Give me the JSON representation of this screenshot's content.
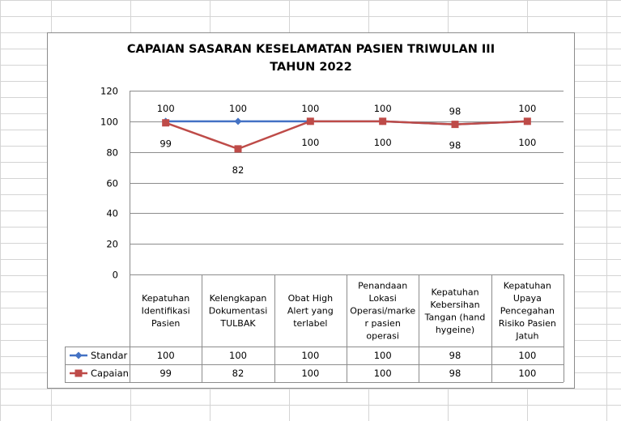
{
  "chart_data": {
    "type": "line",
    "title_lines": [
      "CAPAIAN SASARAN KESELAMATAN PASIEN TRIWULAN III",
      "TAHUN 2022"
    ],
    "categories": [
      [
        "Kepatuhan",
        "Identifikasi",
        "Pasien"
      ],
      [
        "Kelengkapan",
        "Dokumentasi",
        "TULBAK"
      ],
      [
        "Obat High",
        "Alert yang",
        "terlabel"
      ],
      [
        "Penandaan",
        "Lokasi",
        "Operasi/marke",
        "r pasien",
        "operasi"
      ],
      [
        "Kepatuhan",
        "Kebersihan",
        "Tangan (hand",
        "hygeine)"
      ],
      [
        "Kepatuhan",
        "Upaya",
        "Pencegahan",
        "Risiko Pasien",
        "Jatuh"
      ]
    ],
    "series": [
      {
        "name": "Standar",
        "values": [
          100,
          100,
          100,
          100,
          98,
          100
        ],
        "color": "#4472C4",
        "marker": "diamond"
      },
      {
        "name": "Capaian",
        "values": [
          99,
          82,
          100,
          100,
          98,
          100
        ],
        "color": "#BE4B48",
        "marker": "square"
      }
    ],
    "ylim": [
      0,
      120
    ],
    "yticks": [
      "0",
      "20",
      "40",
      "60",
      "80",
      "100",
      "120"
    ],
    "grid": true,
    "data_table": true,
    "legend_placement": "data-table"
  }
}
